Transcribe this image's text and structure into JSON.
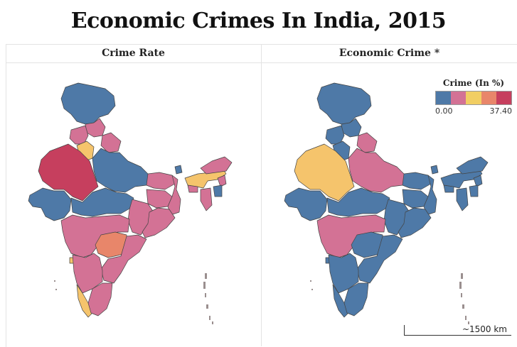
{
  "title": "Economic Crimes In India, 2015",
  "panels": {
    "left": "Crime Rate",
    "right": "Economic Crime *"
  },
  "legend": {
    "title": "Crime (In %)",
    "min_label": "0.00",
    "max_label": "37.40",
    "colors": [
      "#4e79a7",
      "#d37295",
      "#f1ce63",
      "#e8866a",
      "#c63f5e"
    ]
  },
  "scale_label": "~1500 km",
  "colors": {
    "blue": "#4e79a7",
    "pink": "#d37295",
    "yellow": "#f5c46c",
    "orange": "#e8866a",
    "red": "#c63f5e",
    "island": "#9a8f8f"
  }
}
